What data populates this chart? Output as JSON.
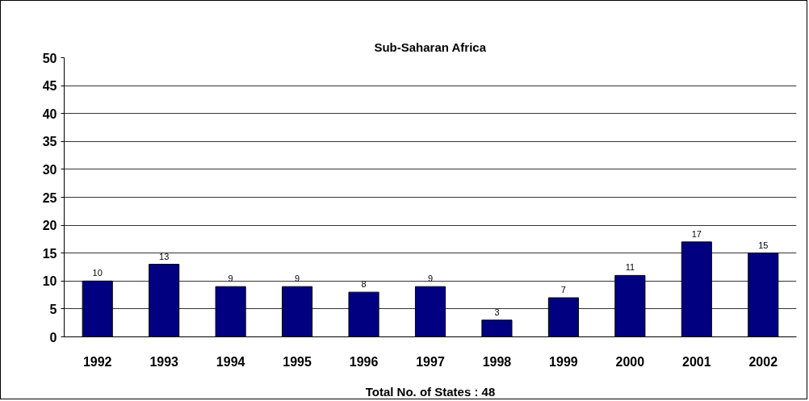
{
  "chart_data": {
    "type": "bar",
    "title": "Sub-Saharan Africa",
    "xlabel": "Total No. of States : 48",
    "categories": [
      "1992",
      "1993",
      "1994",
      "1995",
      "1996",
      "1997",
      "1998",
      "1999",
      "2000",
      "2001",
      "2002"
    ],
    "values": [
      10,
      13,
      9,
      9,
      8,
      9,
      3,
      7,
      11,
      17,
      15
    ],
    "color": "#000080",
    "ylim": [
      0,
      50
    ],
    "yticks": [
      0,
      5,
      10,
      15,
      20,
      25,
      30,
      35,
      40,
      45,
      50
    ],
    "grid": "y",
    "data_labels": true
  }
}
